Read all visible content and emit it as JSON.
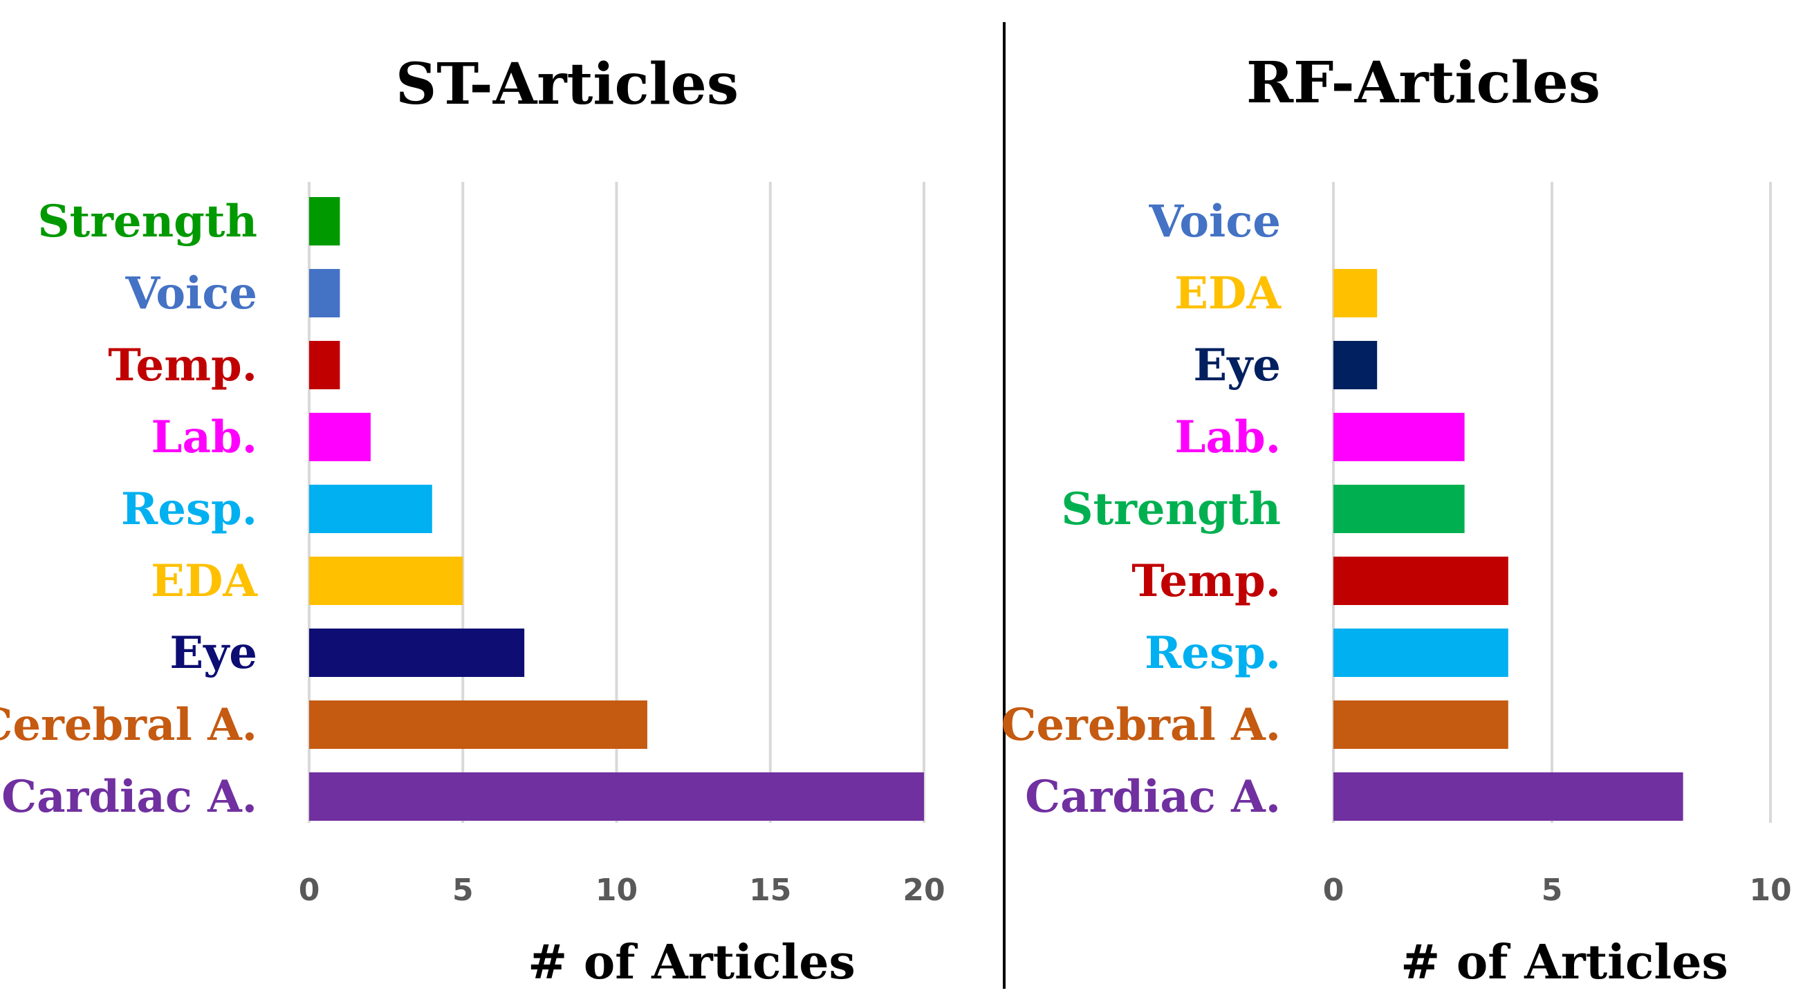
{
  "chart_data": [
    {
      "type": "bar",
      "orientation": "horizontal",
      "title": "ST-Articles",
      "xlabel": "# of Articles",
      "ylabel": "",
      "xlim": [
        0,
        20
      ],
      "xticks": [
        0,
        5,
        10,
        15,
        20
      ],
      "grid": true,
      "categories": [
        "Strength",
        "Voice",
        "Temp.",
        "Lab.",
        "Resp.",
        "EDA",
        "Eye",
        "Cerebral A.",
        "Cardiac A."
      ],
      "values": [
        1,
        1,
        1,
        2,
        4,
        5,
        7,
        11,
        20
      ],
      "colors": [
        "#009900",
        "#4472c4",
        "#c00000",
        "#ff00ff",
        "#00b0f0",
        "#ffc000",
        "#0d0d73",
        "#c55a11",
        "#7030a0"
      ]
    },
    {
      "type": "bar",
      "orientation": "horizontal",
      "title": "RF-Articles",
      "xlabel": "# of Articles",
      "ylabel": "",
      "xlim": [
        0,
        10
      ],
      "xticks": [
        0,
        5,
        10
      ],
      "grid": true,
      "categories": [
        "Voice",
        "EDA",
        "Eye",
        "Lab.",
        "Strength",
        "Temp.",
        "Resp.",
        "Cerebral A.",
        "Cardiac A."
      ],
      "values": [
        0,
        1,
        1,
        3,
        3,
        4,
        4,
        4,
        8
      ],
      "colors": [
        "#4472c4",
        "#ffc000",
        "#002060",
        "#ff00ff",
        "#00b050",
        "#c00000",
        "#00b0f0",
        "#c55a11",
        "#7030a0"
      ]
    }
  ]
}
